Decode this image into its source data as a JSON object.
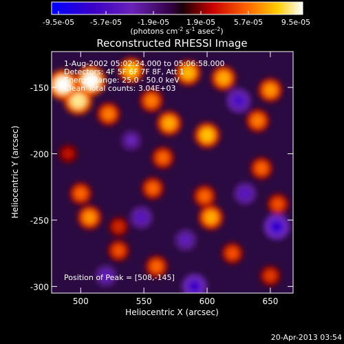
{
  "chart_data": {
    "type": "heatmap",
    "title": "Reconstructed RHESSI Image",
    "xlabel": "Heliocentric X (arcsec)",
    "ylabel": "Heliocentric Y (arcsec)",
    "xlim": [
      477,
      668
    ],
    "ylim": [
      -305,
      -123
    ],
    "x_ticks": [
      500,
      550,
      600,
      650
    ],
    "y_ticks": [
      -150,
      -200,
      -250,
      -300
    ],
    "colorbar": {
      "min": -9.5e-05,
      "max": 9.5e-05,
      "ticks": [
        "-9.5e-05",
        "-5.7e-05",
        "-1.9e-05",
        "1.9e-05",
        "5.7e-05",
        "9.5e-05"
      ],
      "units_label": "(photons cm",
      "units_exp1": "-2",
      "units_mid": " s",
      "units_exp2": "-1",
      "units_mid2": " asec",
      "units_exp3": "-2",
      "units_end": ")"
    },
    "annotations": [
      "1-Aug-2002 05:02:24.000 to 05:06:58.000",
      "Detectors: 4F 5F 6F 7F 8F, Att 1",
      "Energy Range: 25.0 - 50.0 keV",
      "Clean    Total counts: 3.04E+03",
      "Position of Peak = [508,-145]"
    ],
    "peak_value": 9.5e-05,
    "sources": [
      {
        "x": 486,
        "y": -148,
        "value": 9.5e-05
      },
      {
        "x": 508,
        "y": -145,
        "value": 9.5e-05
      },
      {
        "x": 498,
        "y": -160,
        "value": 8.5e-05
      },
      {
        "x": 540,
        "y": -137,
        "value": 7e-05
      },
      {
        "x": 585,
        "y": -139,
        "value": 6.8e-05
      },
      {
        "x": 613,
        "y": -143,
        "value": 6.5e-05
      },
      {
        "x": 650,
        "y": -152,
        "value": 6e-05
      },
      {
        "x": 522,
        "y": -170,
        "value": 5.5e-05
      },
      {
        "x": 556,
        "y": -160,
        "value": 5.5e-05
      },
      {
        "x": 570,
        "y": -177,
        "value": 6.5e-05
      },
      {
        "x": 600,
        "y": -186,
        "value": 7e-05
      },
      {
        "x": 565,
        "y": -203,
        "value": 5e-05
      },
      {
        "x": 640,
        "y": -175,
        "value": 5.5e-05
      },
      {
        "x": 500,
        "y": -230,
        "value": 5e-05
      },
      {
        "x": 507,
        "y": -248,
        "value": 6e-05
      },
      {
        "x": 557,
        "y": -226,
        "value": 5e-05
      },
      {
        "x": 598,
        "y": -232,
        "value": 5e-05
      },
      {
        "x": 603,
        "y": -248,
        "value": 6.5e-05
      },
      {
        "x": 643,
        "y": -211,
        "value": 5e-05
      },
      {
        "x": 656,
        "y": -238,
        "value": 4.5e-05
      },
      {
        "x": 530,
        "y": -273,
        "value": 4.5e-05
      },
      {
        "x": 560,
        "y": -285,
        "value": 5e-05
      },
      {
        "x": 620,
        "y": -275,
        "value": 4.5e-05
      },
      {
        "x": 650,
        "y": -292,
        "value": 4e-05
      },
      {
        "x": 530,
        "y": -255,
        "value": 3.5e-05
      },
      {
        "x": 490,
        "y": -200,
        "value": 3e-05
      },
      {
        "x": 625,
        "y": -160,
        "value": -6e-05
      },
      {
        "x": 548,
        "y": -248,
        "value": -5e-05
      },
      {
        "x": 655,
        "y": -255,
        "value": -7e-05
      },
      {
        "x": 590,
        "y": -300,
        "value": -6.5e-05
      },
      {
        "x": 520,
        "y": -292,
        "value": -4.5e-05
      },
      {
        "x": 540,
        "y": -190,
        "value": -4e-05
      },
      {
        "x": 630,
        "y": -230,
        "value": -5e-05
      },
      {
        "x": 583,
        "y": -265,
        "value": -4.5e-05
      }
    ]
  },
  "footer": {
    "timestamp": "20-Apr-2013 03:54"
  }
}
